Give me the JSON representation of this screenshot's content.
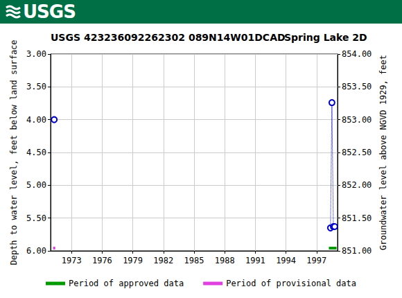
{
  "banner": "USGS",
  "chart_data": {
    "type": "scatter",
    "title": "USGS 423236092262302 089N14W01DCAD",
    "subtitle": "Spring Lake 2D",
    "y_label": "Depth to water level, feet below land surface",
    "y2_label": "Groundwater level above NGVD 1929, feet",
    "x": [
      1971.3,
      1998.0,
      1998.36,
      1998.5,
      1998.64,
      1998.77
    ],
    "values": [
      4.0,
      null,
      5.65,
      3.74,
      5.63,
      5.63
    ],
    "color": "#0000cc",
    "marker": "circle",
    "line_style": "dotted",
    "xlim": [
      1970.95,
      1999.05
    ],
    "xticks": [
      1973,
      1976,
      1979,
      1982,
      1985,
      1988,
      1991,
      1994,
      1997
    ],
    "ylim": [
      6,
      3
    ],
    "yticks": [
      {
        "value": 3,
        "label": "3.00"
      },
      {
        "value": 3.5,
        "label": "3.50"
      },
      {
        "value": 4,
        "label": "4.00"
      },
      {
        "value": 4.5,
        "label": "4.50"
      },
      {
        "value": 5,
        "label": "5.00"
      },
      {
        "value": 5.5,
        "label": "5.50"
      },
      {
        "value": 6,
        "label": "6.00"
      }
    ],
    "y2lim": [
      851,
      854
    ],
    "y2ticks": [
      {
        "value": 851,
        "label": "851.00"
      },
      {
        "value": 851.5,
        "label": "851.50"
      },
      {
        "value": 852,
        "label": "852.00"
      },
      {
        "value": 852.5,
        "label": "852.50"
      },
      {
        "value": 853,
        "label": "853.00"
      },
      {
        "value": 853.5,
        "label": "853.50"
      },
      {
        "value": 854,
        "label": "854.00"
      }
    ],
    "grid": true,
    "legend": "bottom",
    "periods": [
      {
        "name": "Period of approved data",
        "color": "#009900",
        "x": [
          1998.2,
          1998.95
        ]
      },
      {
        "name": "Period of provisional data",
        "color": "#e040e0",
        "x": [
          1971.2,
          1971.4
        ]
      }
    ]
  }
}
